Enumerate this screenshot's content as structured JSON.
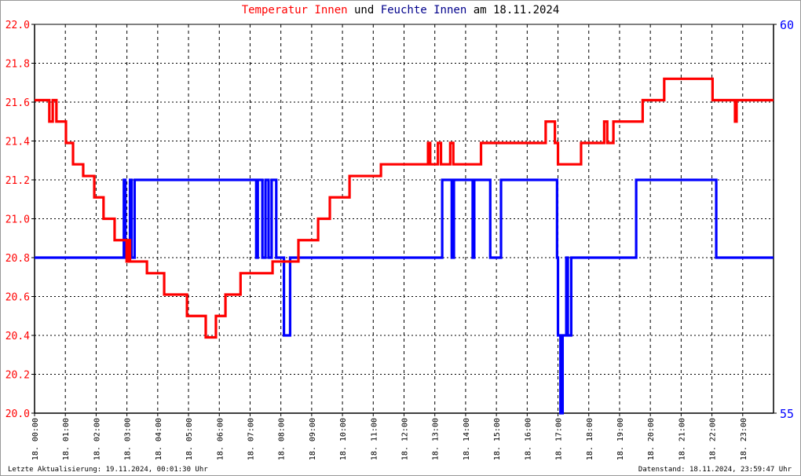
{
  "title": {
    "part1": "Temperatur Innen",
    "part2": " und ",
    "part3": "Feuchte Innen",
    "part4": " am 18.11.2024"
  },
  "footer": {
    "left": "Letzte Aktualisierung: 19.11.2024, 00:01:30 Uhr",
    "right": "Datenstand: 18.11.2024, 23:59:47 Uhr"
  },
  "colors": {
    "temperature": "#ff0000",
    "humidity": "#0000ff",
    "humidity_title": "#00008b"
  },
  "chart_data": {
    "type": "line",
    "step": true,
    "grid": true,
    "xlim": [
      0,
      24
    ],
    "x_unit": "hour of day 18.11.2024",
    "xticks": [
      "18. 00:00",
      "18. 01:00",
      "18. 02:00",
      "18. 03:00",
      "18. 04:00",
      "18. 05:00",
      "18. 06:00",
      "18. 07:00",
      "18. 08:00",
      "18. 09:00",
      "18. 10:00",
      "18. 11:00",
      "18. 12:00",
      "18. 13:00",
      "18. 14:00",
      "18. 15:00",
      "18. 16:00",
      "18. 17:00",
      "18. 18:00",
      "18. 19:00",
      "18. 20:00",
      "18. 21:00",
      "18. 22:00",
      "18. 23:00"
    ],
    "y_left": {
      "lim": [
        20.0,
        22.0
      ],
      "ticks": [
        "20.0",
        "20.2",
        "20.4",
        "20.6",
        "20.8",
        "21.0",
        "21.2",
        "21.4",
        "21.6",
        "21.8",
        "22.0"
      ]
    },
    "y_right": {
      "lim": [
        55,
        60
      ],
      "ticks": [
        "55",
        "60"
      ]
    },
    "series": [
      {
        "name": "Temperatur Innen",
        "axis": "left",
        "points": [
          [
            0,
            21.61
          ],
          [
            0.48,
            21.5
          ],
          [
            0.59,
            21.61
          ],
          [
            0.71,
            21.5
          ],
          [
            1.02,
            21.39
          ],
          [
            1.25,
            21.28
          ],
          [
            1.58,
            21.22
          ],
          [
            1.94,
            21.11
          ],
          [
            2.24,
            21.0
          ],
          [
            2.6,
            20.89
          ],
          [
            2.99,
            20.78
          ],
          [
            3.04,
            20.89
          ],
          [
            3.1,
            20.78
          ],
          [
            3.65,
            20.72
          ],
          [
            4.21,
            20.61
          ],
          [
            4.95,
            20.5
          ],
          [
            5.56,
            20.39
          ],
          [
            5.89,
            20.5
          ],
          [
            6.2,
            20.61
          ],
          [
            6.69,
            20.72
          ],
          [
            7.73,
            20.78
          ],
          [
            8.57,
            20.89
          ],
          [
            9.21,
            21.0
          ],
          [
            9.59,
            21.11
          ],
          [
            10.23,
            21.22
          ],
          [
            11.25,
            21.28
          ],
          [
            12.78,
            21.39
          ],
          [
            12.85,
            21.28
          ],
          [
            13.1,
            21.39
          ],
          [
            13.2,
            21.28
          ],
          [
            13.5,
            21.39
          ],
          [
            13.6,
            21.28
          ],
          [
            14.5,
            21.39
          ],
          [
            16.6,
            21.5
          ],
          [
            16.9,
            21.39
          ],
          [
            17.0,
            21.28
          ],
          [
            17.75,
            21.39
          ],
          [
            18.5,
            21.5
          ],
          [
            18.6,
            21.39
          ],
          [
            18.8,
            21.5
          ],
          [
            19.75,
            21.61
          ],
          [
            20.45,
            21.72
          ],
          [
            22.02,
            21.61
          ],
          [
            22.75,
            21.5
          ],
          [
            22.8,
            21.61
          ],
          [
            24,
            21.61
          ]
        ]
      },
      {
        "name": "Feuchte Innen",
        "axis": "right",
        "points": [
          [
            0,
            57
          ],
          [
            2.9,
            58
          ],
          [
            2.95,
            57
          ],
          [
            3.1,
            58
          ],
          [
            3.15,
            57
          ],
          [
            3.25,
            58
          ],
          [
            7.2,
            57
          ],
          [
            7.25,
            58
          ],
          [
            7.4,
            57
          ],
          [
            7.5,
            58
          ],
          [
            7.6,
            57
          ],
          [
            7.7,
            58
          ],
          [
            7.85,
            57
          ],
          [
            8.1,
            56
          ],
          [
            8.3,
            57
          ],
          [
            13.24,
            58
          ],
          [
            13.55,
            57
          ],
          [
            13.62,
            58
          ],
          [
            14.23,
            57
          ],
          [
            14.28,
            58
          ],
          [
            14.8,
            57
          ],
          [
            15.15,
            58
          ],
          [
            16.97,
            57
          ],
          [
            17.0,
            56
          ],
          [
            17.08,
            55
          ],
          [
            17.15,
            56
          ],
          [
            17.27,
            57
          ],
          [
            17.32,
            56
          ],
          [
            17.43,
            57
          ],
          [
            19.54,
            58
          ],
          [
            22.14,
            57
          ],
          [
            24,
            57
          ]
        ]
      }
    ]
  }
}
